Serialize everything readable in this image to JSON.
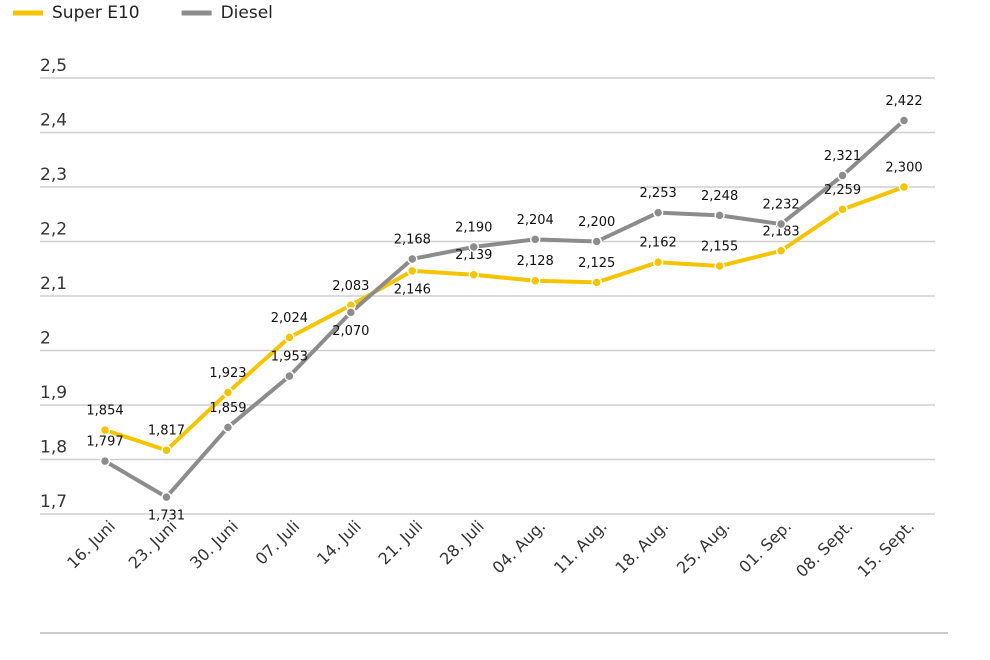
{
  "chart_data": {
    "type": "line",
    "categories": [
      "16. Juni",
      "23. Juni",
      "30. Juni",
      "07. Juli",
      "14. Juli",
      "21. Juli",
      "28. Juli",
      "04. Aug.",
      "11. Aug.",
      "18. Aug.",
      "25. Aug.",
      "01. Sep.",
      "08. Sept.",
      "15. Sept."
    ],
    "series": [
      {
        "name": "Super E10",
        "color": "#f5c400",
        "values": [
          1.854,
          1.817,
          1.923,
          2.024,
          2.083,
          2.146,
          2.139,
          2.128,
          2.125,
          2.162,
          2.155,
          2.183,
          2.259,
          2.3
        ],
        "value_labels": [
          "1,854",
          "1,817",
          "1,923",
          "2,024",
          "2,083",
          "2,146",
          "2,139",
          "2,128",
          "2,125",
          "2,162",
          "2,155",
          "2,183",
          "2,259",
          "2,300"
        ]
      },
      {
        "name": "Diesel",
        "color": "#8c8c8c",
        "values": [
          1.797,
          1.731,
          1.859,
          1.953,
          2.07,
          2.168,
          2.19,
          2.204,
          2.2,
          2.253,
          2.248,
          2.232,
          2.321,
          2.422
        ],
        "value_labels": [
          "1,797",
          "1,731",
          "1,859",
          "1,953",
          "2,070",
          "2,168",
          "2,190",
          "2,204",
          "2,200",
          "2,253",
          "2,248",
          "2,232",
          "2,321",
          "2,422"
        ]
      }
    ],
    "ylim": [
      1.7,
      2.5
    ],
    "yticks": [
      {
        "value": 1.7,
        "label": "1,7"
      },
      {
        "value": 1.8,
        "label": "1,8"
      },
      {
        "value": 1.9,
        "label": "1,9"
      },
      2,
      {
        "value": 2.1,
        "label": "2,1"
      },
      {
        "value": 2.2,
        "label": "2,2"
      },
      {
        "value": 2.3,
        "label": "2,3"
      },
      {
        "value": 2.4,
        "label": "2,4"
      },
      {
        "value": 2.5,
        "label": "2,5"
      }
    ],
    "grid": true,
    "legend": "top-left"
  }
}
